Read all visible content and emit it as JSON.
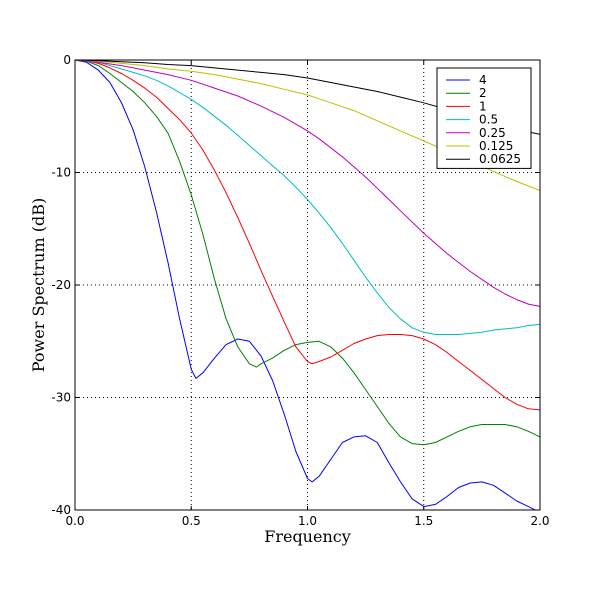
{
  "chart_data": {
    "type": "line",
    "xlabel": "Frequency",
    "ylabel": "Power Spectrum (dB)",
    "xlim": [
      0.0,
      2.0
    ],
    "ylim": [
      -40,
      0
    ],
    "xticks": [
      0.0,
      0.5,
      1.0,
      1.5,
      2.0
    ],
    "xtick_labels": [
      "0.0",
      "0.5",
      "1.0",
      "1.5",
      "2.0"
    ],
    "yticks": [
      0,
      -10,
      -20,
      -30,
      -40
    ],
    "ytick_labels": [
      "0",
      "-10",
      "-20",
      "-30",
      "-40"
    ],
    "grid": true,
    "grid_style": "dotted",
    "legend_position": "top-right",
    "series": [
      {
        "name": "4",
        "color": "#0000ff",
        "points": [
          [
            0.0,
            0
          ],
          [
            0.05,
            -0.2
          ],
          [
            0.1,
            -0.9
          ],
          [
            0.15,
            -2.0
          ],
          [
            0.2,
            -3.8
          ],
          [
            0.25,
            -6.2
          ],
          [
            0.3,
            -9.5
          ],
          [
            0.35,
            -13.5
          ],
          [
            0.4,
            -18.0
          ],
          [
            0.45,
            -23.0
          ],
          [
            0.5,
            -27.5
          ],
          [
            0.52,
            -28.3
          ],
          [
            0.55,
            -27.8
          ],
          [
            0.6,
            -26.5
          ],
          [
            0.65,
            -25.3
          ],
          [
            0.7,
            -24.8
          ],
          [
            0.75,
            -25.0
          ],
          [
            0.8,
            -26.3
          ],
          [
            0.85,
            -28.5
          ],
          [
            0.9,
            -31.5
          ],
          [
            0.95,
            -34.8
          ],
          [
            1.0,
            -37.2
          ],
          [
            1.02,
            -37.5
          ],
          [
            1.05,
            -37.0
          ],
          [
            1.1,
            -35.5
          ],
          [
            1.15,
            -34.0
          ],
          [
            1.2,
            -33.5
          ],
          [
            1.25,
            -33.4
          ],
          [
            1.3,
            -34.0
          ],
          [
            1.35,
            -35.8
          ],
          [
            1.4,
            -37.5
          ],
          [
            1.45,
            -39.0
          ],
          [
            1.5,
            -39.7
          ],
          [
            1.55,
            -39.5
          ],
          [
            1.6,
            -38.8
          ],
          [
            1.65,
            -38.0
          ],
          [
            1.7,
            -37.6
          ],
          [
            1.75,
            -37.5
          ],
          [
            1.8,
            -37.8
          ],
          [
            1.85,
            -38.5
          ],
          [
            1.9,
            -39.2
          ],
          [
            1.95,
            -39.7
          ],
          [
            2.0,
            -40.2
          ]
        ]
      },
      {
        "name": "2",
        "color": "#008000",
        "points": [
          [
            0.0,
            0
          ],
          [
            0.05,
            -0.1
          ],
          [
            0.1,
            -0.5
          ],
          [
            0.15,
            -1.2
          ],
          [
            0.2,
            -2.0
          ],
          [
            0.25,
            -2.8
          ],
          [
            0.3,
            -3.8
          ],
          [
            0.35,
            -5.0
          ],
          [
            0.4,
            -6.5
          ],
          [
            0.45,
            -9.0
          ],
          [
            0.5,
            -12.0
          ],
          [
            0.55,
            -15.5
          ],
          [
            0.6,
            -19.5
          ],
          [
            0.65,
            -23.0
          ],
          [
            0.7,
            -25.5
          ],
          [
            0.75,
            -27.0
          ],
          [
            0.78,
            -27.3
          ],
          [
            0.8,
            -27.0
          ],
          [
            0.85,
            -26.5
          ],
          [
            0.9,
            -25.8
          ],
          [
            0.95,
            -25.3
          ],
          [
            1.0,
            -25.1
          ],
          [
            1.05,
            -25.0
          ],
          [
            1.1,
            -25.5
          ],
          [
            1.15,
            -26.5
          ],
          [
            1.2,
            -27.8
          ],
          [
            1.25,
            -29.3
          ],
          [
            1.3,
            -30.8
          ],
          [
            1.35,
            -32.3
          ],
          [
            1.4,
            -33.5
          ],
          [
            1.45,
            -34.1
          ],
          [
            1.5,
            -34.2
          ],
          [
            1.55,
            -34.0
          ],
          [
            1.6,
            -33.5
          ],
          [
            1.65,
            -33.0
          ],
          [
            1.7,
            -32.6
          ],
          [
            1.75,
            -32.4
          ],
          [
            1.8,
            -32.4
          ],
          [
            1.85,
            -32.4
          ],
          [
            1.9,
            -32.6
          ],
          [
            1.95,
            -33.0
          ],
          [
            2.0,
            -33.5
          ]
        ]
      },
      {
        "name": "1",
        "color": "#ff0000",
        "points": [
          [
            0.0,
            0
          ],
          [
            0.05,
            -0.05
          ],
          [
            0.1,
            -0.3
          ],
          [
            0.15,
            -0.7
          ],
          [
            0.2,
            -1.2
          ],
          [
            0.25,
            -1.8
          ],
          [
            0.3,
            -2.5
          ],
          [
            0.35,
            -3.3
          ],
          [
            0.4,
            -4.3
          ],
          [
            0.45,
            -5.3
          ],
          [
            0.5,
            -6.5
          ],
          [
            0.55,
            -8.0
          ],
          [
            0.6,
            -9.8
          ],
          [
            0.65,
            -11.8
          ],
          [
            0.7,
            -14.0
          ],
          [
            0.75,
            -16.3
          ],
          [
            0.8,
            -18.7
          ],
          [
            0.85,
            -21.0
          ],
          [
            0.9,
            -23.3
          ],
          [
            0.95,
            -25.5
          ],
          [
            1.0,
            -26.8
          ],
          [
            1.02,
            -27.0
          ],
          [
            1.05,
            -26.8
          ],
          [
            1.1,
            -26.4
          ],
          [
            1.15,
            -25.8
          ],
          [
            1.2,
            -25.2
          ],
          [
            1.25,
            -24.8
          ],
          [
            1.3,
            -24.5
          ],
          [
            1.35,
            -24.4
          ],
          [
            1.4,
            -24.4
          ],
          [
            1.45,
            -24.5
          ],
          [
            1.5,
            -24.8
          ],
          [
            1.55,
            -25.3
          ],
          [
            1.6,
            -26.0
          ],
          [
            1.65,
            -26.8
          ],
          [
            1.7,
            -27.6
          ],
          [
            1.75,
            -28.4
          ],
          [
            1.8,
            -29.2
          ],
          [
            1.85,
            -30.0
          ],
          [
            1.9,
            -30.6
          ],
          [
            1.95,
            -31.0
          ],
          [
            2.0,
            -31.1
          ]
        ]
      },
      {
        "name": "0.5",
        "color": "#00bfbf",
        "points": [
          [
            0.0,
            0
          ],
          [
            0.05,
            -0.05
          ],
          [
            0.1,
            -0.2
          ],
          [
            0.15,
            -0.5
          ],
          [
            0.2,
            -0.8
          ],
          [
            0.25,
            -1.1
          ],
          [
            0.3,
            -1.4
          ],
          [
            0.35,
            -1.8
          ],
          [
            0.4,
            -2.3
          ],
          [
            0.45,
            -2.9
          ],
          [
            0.5,
            -3.5
          ],
          [
            0.55,
            -4.2
          ],
          [
            0.6,
            -5.0
          ],
          [
            0.65,
            -5.8
          ],
          [
            0.7,
            -6.7
          ],
          [
            0.75,
            -7.6
          ],
          [
            0.8,
            -8.5
          ],
          [
            0.85,
            -9.4
          ],
          [
            0.9,
            -10.3
          ],
          [
            0.95,
            -11.3
          ],
          [
            1.0,
            -12.4
          ],
          [
            1.05,
            -13.6
          ],
          [
            1.1,
            -14.9
          ],
          [
            1.15,
            -16.3
          ],
          [
            1.2,
            -17.8
          ],
          [
            1.25,
            -19.3
          ],
          [
            1.3,
            -20.7
          ],
          [
            1.35,
            -22.0
          ],
          [
            1.4,
            -23.0
          ],
          [
            1.45,
            -23.8
          ],
          [
            1.5,
            -24.2
          ],
          [
            1.55,
            -24.4
          ],
          [
            1.6,
            -24.4
          ],
          [
            1.65,
            -24.4
          ],
          [
            1.7,
            -24.3
          ],
          [
            1.75,
            -24.2
          ],
          [
            1.8,
            -24.0
          ],
          [
            1.85,
            -23.9
          ],
          [
            1.9,
            -23.8
          ],
          [
            1.95,
            -23.6
          ],
          [
            2.0,
            -23.5
          ]
        ]
      },
      {
        "name": "0.25",
        "color": "#bf00bf",
        "points": [
          [
            0.0,
            0
          ],
          [
            0.1,
            -0.2
          ],
          [
            0.2,
            -0.5
          ],
          [
            0.3,
            -0.9
          ],
          [
            0.4,
            -1.3
          ],
          [
            0.5,
            -1.8
          ],
          [
            0.6,
            -2.5
          ],
          [
            0.7,
            -3.2
          ],
          [
            0.8,
            -4.1
          ],
          [
            0.9,
            -5.1
          ],
          [
            1.0,
            -6.3
          ],
          [
            1.05,
            -7.0
          ],
          [
            1.1,
            -7.8
          ],
          [
            1.15,
            -8.6
          ],
          [
            1.2,
            -9.5
          ],
          [
            1.25,
            -10.4
          ],
          [
            1.3,
            -11.4
          ],
          [
            1.35,
            -12.4
          ],
          [
            1.4,
            -13.4
          ],
          [
            1.45,
            -14.4
          ],
          [
            1.5,
            -15.4
          ],
          [
            1.55,
            -16.3
          ],
          [
            1.6,
            -17.2
          ],
          [
            1.65,
            -18.0
          ],
          [
            1.7,
            -18.8
          ],
          [
            1.75,
            -19.5
          ],
          [
            1.8,
            -20.2
          ],
          [
            1.85,
            -20.8
          ],
          [
            1.9,
            -21.3
          ],
          [
            1.95,
            -21.7
          ],
          [
            2.0,
            -21.9
          ]
        ]
      },
      {
        "name": "0.125",
        "color": "#bfbf00",
        "points": [
          [
            0.0,
            0
          ],
          [
            0.1,
            -0.1
          ],
          [
            0.2,
            -0.3
          ],
          [
            0.3,
            -0.5
          ],
          [
            0.4,
            -0.8
          ],
          [
            0.5,
            -1.0
          ],
          [
            0.6,
            -1.3
          ],
          [
            0.7,
            -1.7
          ],
          [
            0.8,
            -2.1
          ],
          [
            0.9,
            -2.6
          ],
          [
            1.0,
            -3.1
          ],
          [
            1.1,
            -3.8
          ],
          [
            1.2,
            -4.5
          ],
          [
            1.3,
            -5.4
          ],
          [
            1.4,
            -6.3
          ],
          [
            1.5,
            -7.2
          ],
          [
            1.6,
            -8.1
          ],
          [
            1.7,
            -9.0
          ],
          [
            1.8,
            -9.9
          ],
          [
            1.9,
            -10.8
          ],
          [
            2.0,
            -11.6
          ]
        ]
      },
      {
        "name": "0.0625",
        "color": "#000000",
        "points": [
          [
            0.0,
            0
          ],
          [
            0.1,
            -0.05
          ],
          [
            0.2,
            -0.15
          ],
          [
            0.3,
            -0.25
          ],
          [
            0.4,
            -0.4
          ],
          [
            0.5,
            -0.5
          ],
          [
            0.6,
            -0.7
          ],
          [
            0.7,
            -0.9
          ],
          [
            0.8,
            -1.1
          ],
          [
            0.9,
            -1.3
          ],
          [
            1.0,
            -1.6
          ],
          [
            1.1,
            -2.0
          ],
          [
            1.2,
            -2.4
          ],
          [
            1.3,
            -2.8
          ],
          [
            1.4,
            -3.3
          ],
          [
            1.5,
            -3.8
          ],
          [
            1.6,
            -4.4
          ],
          [
            1.7,
            -5.0
          ],
          [
            1.8,
            -5.6
          ],
          [
            1.9,
            -6.2
          ],
          [
            2.0,
            -6.6
          ]
        ]
      }
    ]
  }
}
